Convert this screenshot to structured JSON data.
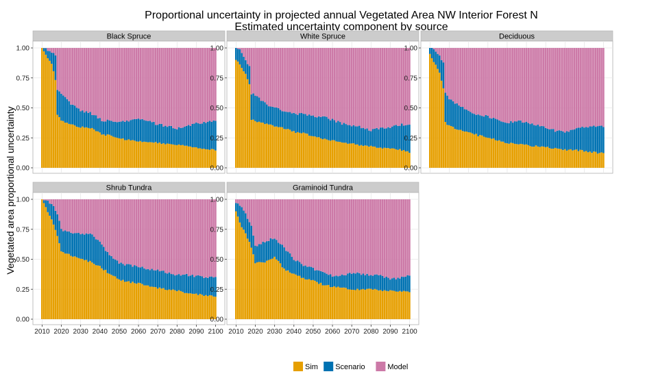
{
  "chart_data": {
    "type": "bar",
    "stacked": true,
    "title": "Proportional uncertainty in projected annual  Vegetated Area NW Interior Forest N",
    "subtitle": "Estimated uncertainty component by source",
    "ylabel": "Vegetated area proportional uncertainty",
    "xlabel": "",
    "ylim": [
      0,
      1
    ],
    "xlim": [
      2010,
      2100
    ],
    "x_ticks": [
      2010,
      2020,
      2030,
      2040,
      2050,
      2060,
      2070,
      2080,
      2090,
      2100
    ],
    "y_ticks": [
      "0.00",
      "0.25",
      "0.50",
      "0.75",
      "1.00"
    ],
    "grid": true,
    "legend_position": "bottom",
    "legend": [
      {
        "name": "Sim",
        "color": "#E69F00"
      },
      {
        "name": "Scenario",
        "color": "#0072B2"
      },
      {
        "name": "Model",
        "color": "#CC79A7"
      }
    ],
    "panels": [
      {
        "title": "Black Spruce",
        "anchor_years": [
          2010,
          2012,
          2015,
          2017,
          2018,
          2020,
          2025,
          2030,
          2035,
          2040,
          2041,
          2045,
          2050,
          2055,
          2060,
          2065,
          2070,
          2075,
          2080,
          2085,
          2090,
          2095,
          2100
        ],
        "sim": [
          1.0,
          0.95,
          0.86,
          0.74,
          0.45,
          0.4,
          0.36,
          0.34,
          0.33,
          0.3,
          0.28,
          0.27,
          0.25,
          0.23,
          0.22,
          0.22,
          0.21,
          0.2,
          0.19,
          0.18,
          0.17,
          0.16,
          0.15
        ],
        "sim_plus_scenario": [
          1.0,
          0.99,
          0.97,
          0.93,
          0.65,
          0.62,
          0.53,
          0.48,
          0.46,
          0.41,
          0.39,
          0.4,
          0.38,
          0.39,
          0.41,
          0.4,
          0.36,
          0.35,
          0.33,
          0.35,
          0.37,
          0.38,
          0.39
        ]
      },
      {
        "title": "White Spruce",
        "anchor_years": [
          2010,
          2012,
          2015,
          2017,
          2018,
          2020,
          2025,
          2030,
          2035,
          2040,
          2045,
          2050,
          2055,
          2060,
          2065,
          2070,
          2075,
          2080,
          2085,
          2090,
          2095,
          2100
        ],
        "sim": [
          0.9,
          0.86,
          0.78,
          0.7,
          0.4,
          0.39,
          0.37,
          0.35,
          0.33,
          0.3,
          0.29,
          0.26,
          0.24,
          0.23,
          0.21,
          0.2,
          0.19,
          0.18,
          0.17,
          0.16,
          0.15,
          0.13
        ],
        "sim_plus_scenario": [
          1.0,
          0.98,
          0.9,
          0.84,
          0.62,
          0.6,
          0.54,
          0.5,
          0.47,
          0.45,
          0.45,
          0.43,
          0.43,
          0.4,
          0.37,
          0.35,
          0.34,
          0.31,
          0.33,
          0.34,
          0.36,
          0.36
        ]
      },
      {
        "title": "Deciduous",
        "anchor_years": [
          2010,
          2012,
          2015,
          2017,
          2018,
          2020,
          2025,
          2030,
          2035,
          2040,
          2045,
          2050,
          2055,
          2060,
          2065,
          2070,
          2075,
          2080,
          2085,
          2090,
          2095,
          2100
        ],
        "sim": [
          0.95,
          0.88,
          0.8,
          0.66,
          0.38,
          0.35,
          0.32,
          0.3,
          0.27,
          0.25,
          0.23,
          0.21,
          0.2,
          0.19,
          0.18,
          0.17,
          0.16,
          0.15,
          0.15,
          0.14,
          0.13,
          0.12
        ],
        "sim_plus_scenario": [
          1.0,
          0.99,
          0.93,
          0.88,
          0.62,
          0.58,
          0.52,
          0.48,
          0.44,
          0.43,
          0.4,
          0.38,
          0.39,
          0.38,
          0.36,
          0.34,
          0.31,
          0.3,
          0.32,
          0.34,
          0.35,
          0.35
        ]
      },
      {
        "title": "Shrub Tundra",
        "anchor_years": [
          2010,
          2012,
          2015,
          2018,
          2020,
          2025,
          2030,
          2035,
          2040,
          2045,
          2050,
          2055,
          2060,
          2065,
          2070,
          2075,
          2080,
          2085,
          2090,
          2095,
          2100
        ],
        "sim": [
          1.0,
          0.93,
          0.83,
          0.7,
          0.57,
          0.53,
          0.5,
          0.48,
          0.44,
          0.38,
          0.33,
          0.31,
          0.3,
          0.28,
          0.26,
          0.25,
          0.24,
          0.22,
          0.21,
          0.2,
          0.19
        ],
        "sim_plus_scenario": [
          1.0,
          0.99,
          0.96,
          0.88,
          0.75,
          0.72,
          0.71,
          0.71,
          0.65,
          0.53,
          0.47,
          0.45,
          0.44,
          0.42,
          0.41,
          0.39,
          0.37,
          0.37,
          0.36,
          0.35,
          0.35
        ]
      },
      {
        "title": "Graminoid Tundra",
        "anchor_years": [
          2010,
          2012,
          2015,
          2018,
          2020,
          2025,
          2030,
          2035,
          2040,
          2045,
          2050,
          2055,
          2060,
          2065,
          2070,
          2075,
          2080,
          2085,
          2090,
          2095,
          2100
        ],
        "sim": [
          0.9,
          0.8,
          0.72,
          0.6,
          0.47,
          0.48,
          0.52,
          0.42,
          0.38,
          0.34,
          0.32,
          0.29,
          0.27,
          0.26,
          0.25,
          0.25,
          0.25,
          0.24,
          0.24,
          0.23,
          0.23
        ],
        "sim_plus_scenario": [
          0.97,
          0.95,
          0.88,
          0.78,
          0.61,
          0.65,
          0.68,
          0.6,
          0.5,
          0.45,
          0.42,
          0.39,
          0.36,
          0.37,
          0.38,
          0.38,
          0.37,
          0.36,
          0.34,
          0.34,
          0.37
        ]
      }
    ]
  }
}
